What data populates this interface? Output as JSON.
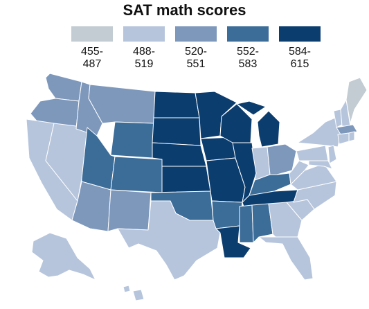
{
  "title": "SAT math scores",
  "colors": {
    "c1": "#c3ccd3",
    "c2": "#b6c5dc",
    "c3": "#7e98bc",
    "c4": "#3c6c98",
    "c5": "#0c3d6f",
    "border": "#ffffff"
  },
  "legend": [
    {
      "line1": "455-",
      "line2": "487",
      "color_key": "c1"
    },
    {
      "line1": "488-",
      "line2": "519",
      "color_key": "c2"
    },
    {
      "line1": "520-",
      "line2": "551",
      "color_key": "c3"
    },
    {
      "line1": "552-",
      "line2": "583",
      "color_key": "c4"
    },
    {
      "line1": "584-",
      "line2": "615",
      "color_key": "c5"
    }
  ]
}
